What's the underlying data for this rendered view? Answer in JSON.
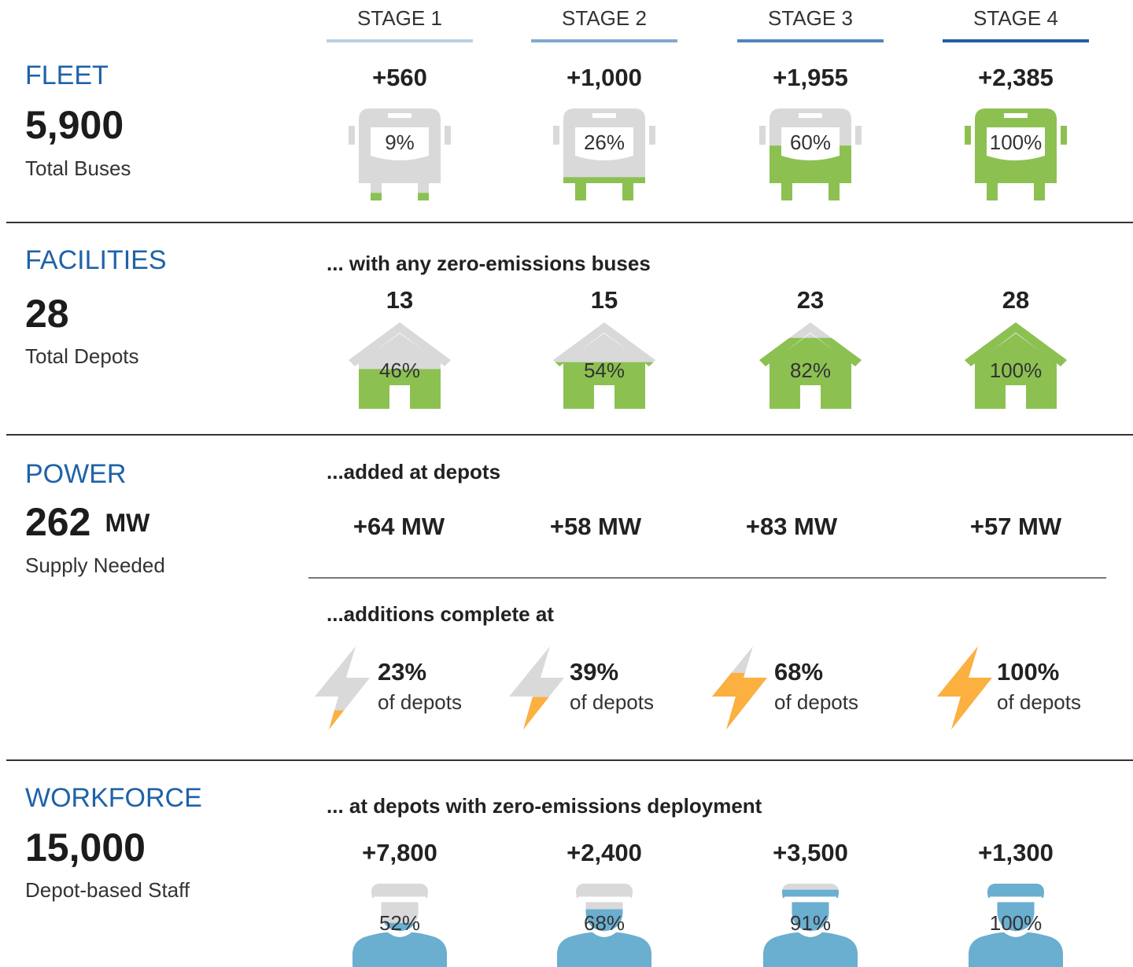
{
  "stages": [
    "STAGE 1",
    "STAGE 2",
    "STAGE 3",
    "STAGE 4"
  ],
  "fleet": {
    "title": "FLEET",
    "total": "5,900",
    "caption": "Total Buses",
    "items": [
      {
        "count": "+560",
        "percent": 9,
        "percent_label": "9%"
      },
      {
        "count": "+1,000",
        "percent": 26,
        "percent_label": "26%"
      },
      {
        "count": "+1,955",
        "percent": 60,
        "percent_label": "60%"
      },
      {
        "count": "+2,385",
        "percent": 100,
        "percent_label": "100%"
      }
    ]
  },
  "facilities": {
    "title": "FACILITIES",
    "total": "28",
    "caption": "Total Depots",
    "subtitle": "... with any zero-emissions buses",
    "items": [
      {
        "count": "13",
        "percent": 46,
        "percent_label": "46%"
      },
      {
        "count": "15",
        "percent": 54,
        "percent_label": "54%"
      },
      {
        "count": "23",
        "percent": 82,
        "percent_label": "82%"
      },
      {
        "count": "28",
        "percent": 100,
        "percent_label": "100%"
      }
    ]
  },
  "power": {
    "title": "POWER",
    "total": "262",
    "unit": "MW",
    "caption": "Supply Needed",
    "subtitle": "...added at depots",
    "additions": [
      "+64 MW",
      "+58 MW",
      "+83 MW",
      "+57 MW"
    ],
    "subtitle2": "...additions complete at",
    "items": [
      {
        "percent": 23,
        "percent_label": "23%",
        "caption": "of depots"
      },
      {
        "percent": 39,
        "percent_label": "39%",
        "caption": "of depots"
      },
      {
        "percent": 68,
        "percent_label": "68%",
        "caption": "of depots"
      },
      {
        "percent": 100,
        "percent_label": "100%",
        "caption": "of depots"
      }
    ]
  },
  "workforce": {
    "title": "WORKFORCE",
    "total": "15,000",
    "caption": "Depot-based Staff",
    "subtitle": "... at depots with zero-emissions deployment",
    "items": [
      {
        "count": "+7,800",
        "percent": 52,
        "percent_label": "52%"
      },
      {
        "count": "+2,400",
        "percent": 68,
        "percent_label": "68%"
      },
      {
        "count": "+3,500",
        "percent": 91,
        "percent_label": "91%"
      },
      {
        "count": "+1,300",
        "percent": 100,
        "percent_label": "100%"
      }
    ]
  }
}
